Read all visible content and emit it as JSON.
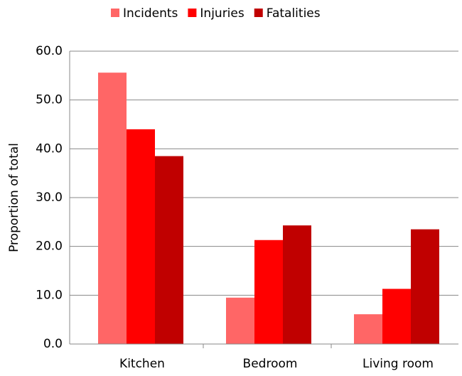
{
  "chart_data": {
    "type": "bar",
    "y_label": "Proportion of total",
    "categories": [
      "Kitchen",
      "Bedroom",
      "Living room"
    ],
    "series": [
      {
        "name": "Incidents",
        "color": "#ff6666",
        "values": [
          55.6,
          9.5,
          6.1
        ]
      },
      {
        "name": "Injuries",
        "color": "#ff0000",
        "values": [
          44.0,
          21.3,
          11.3
        ]
      },
      {
        "name": "Fatalities",
        "color": "#c00000",
        "values": [
          38.5,
          24.3,
          23.5
        ]
      }
    ],
    "ylim": [
      0,
      60
    ],
    "yticks": [
      {
        "value": 0,
        "label": "0.0"
      },
      {
        "value": 10,
        "label": "10.0"
      },
      {
        "value": 20,
        "label": "20.0"
      },
      {
        "value": 30,
        "label": "30.0"
      },
      {
        "value": 40,
        "label": "40.0"
      },
      {
        "value": 50,
        "label": "50.0"
      },
      {
        "value": 60,
        "label": "60.0"
      }
    ],
    "grid": true,
    "legend": "top"
  }
}
